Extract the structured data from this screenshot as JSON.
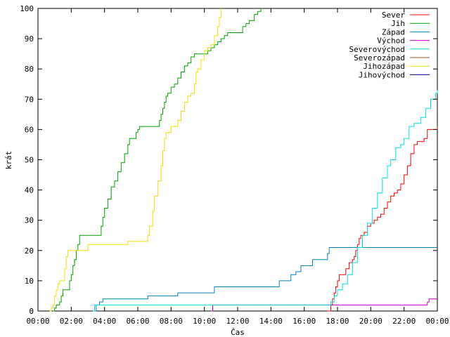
{
  "chart_data": {
    "type": "line",
    "xlabel": "Čas",
    "ylabel": "krát",
    "xlim": [
      0,
      24
    ],
    "ylim": [
      0,
      100
    ],
    "xticks": [
      {
        "v": 0,
        "label": "00:00"
      },
      {
        "v": 2,
        "label": "02:00"
      },
      {
        "v": 4,
        "label": "04:00"
      },
      {
        "v": 6,
        "label": "06:00"
      },
      {
        "v": 8,
        "label": "08:00"
      },
      {
        "v": 10,
        "label": "10:00"
      },
      {
        "v": 12,
        "label": "12:00"
      },
      {
        "v": 14,
        "label": "14:00"
      },
      {
        "v": 16,
        "label": "16:00"
      },
      {
        "v": 18,
        "label": "18:00"
      },
      {
        "v": 20,
        "label": "20:00"
      },
      {
        "v": 22,
        "label": "22:00"
      },
      {
        "v": 24,
        "label": "00:00"
      }
    ],
    "yticks": [
      {
        "v": 0,
        "label": "0"
      },
      {
        "v": 10,
        "label": "10"
      },
      {
        "v": 20,
        "label": "20"
      },
      {
        "v": 30,
        "label": "30"
      },
      {
        "v": 40,
        "label": "40"
      },
      {
        "v": 50,
        "label": "50"
      },
      {
        "v": 60,
        "label": "60"
      },
      {
        "v": 70,
        "label": "70"
      },
      {
        "v": 80,
        "label": "80"
      },
      {
        "v": 90,
        "label": "90"
      },
      {
        "v": 100,
        "label": "100"
      }
    ],
    "grid": false,
    "legend_position": "top-right",
    "series": [
      {
        "name": "Sever",
        "color": "#ff0000",
        "points": [
          [
            17.4,
            0
          ],
          [
            17.6,
            2
          ],
          [
            17.7,
            4
          ],
          [
            17.8,
            6
          ],
          [
            17.9,
            8
          ],
          [
            18.0,
            10
          ],
          [
            18.1,
            12
          ],
          [
            18.4,
            12
          ],
          [
            18.5,
            14
          ],
          [
            18.7,
            16
          ],
          [
            18.9,
            17
          ],
          [
            19.0,
            18
          ],
          [
            19.1,
            20
          ],
          [
            19.2,
            22
          ],
          [
            19.3,
            24
          ],
          [
            19.4,
            25
          ],
          [
            19.6,
            26
          ],
          [
            19.8,
            28
          ],
          [
            20.0,
            29
          ],
          [
            20.2,
            30
          ],
          [
            20.4,
            31
          ],
          [
            20.6,
            32
          ],
          [
            20.8,
            34
          ],
          [
            21.0,
            36
          ],
          [
            21.2,
            38
          ],
          [
            21.4,
            39
          ],
          [
            21.6,
            40
          ],
          [
            21.8,
            42
          ],
          [
            22.0,
            45
          ],
          [
            22.2,
            48
          ],
          [
            22.4,
            52
          ],
          [
            22.6,
            55
          ],
          [
            22.8,
            56
          ],
          [
            23.0,
            56
          ],
          [
            23.2,
            57
          ],
          [
            23.4,
            60
          ],
          [
            23.6,
            60
          ],
          [
            23.8,
            60
          ],
          [
            24.0,
            61
          ]
        ]
      },
      {
        "name": "Jih",
        "color": "#00a000",
        "points": [
          [
            0.9,
            0
          ],
          [
            1.0,
            1
          ],
          [
            1.1,
            2
          ],
          [
            1.2,
            2
          ],
          [
            1.3,
            3
          ],
          [
            1.4,
            5
          ],
          [
            1.5,
            7
          ],
          [
            1.8,
            7
          ],
          [
            1.9,
            10
          ],
          [
            2.0,
            12
          ],
          [
            2.1,
            15
          ],
          [
            2.2,
            17
          ],
          [
            2.3,
            20
          ],
          [
            2.4,
            22
          ],
          [
            2.5,
            25
          ],
          [
            3.7,
            25
          ],
          [
            3.8,
            28
          ],
          [
            3.9,
            31
          ],
          [
            4.0,
            34
          ],
          [
            4.2,
            37
          ],
          [
            4.4,
            41
          ],
          [
            4.6,
            43
          ],
          [
            4.8,
            46
          ],
          [
            5.0,
            49
          ],
          [
            5.2,
            52
          ],
          [
            5.4,
            55
          ],
          [
            5.5,
            57
          ],
          [
            5.8,
            57
          ],
          [
            5.9,
            59
          ],
          [
            6.0,
            60
          ],
          [
            6.1,
            61
          ],
          [
            7.2,
            61
          ],
          [
            7.3,
            63
          ],
          [
            7.4,
            65
          ],
          [
            7.5,
            67
          ],
          [
            7.6,
            69
          ],
          [
            7.7,
            71
          ],
          [
            7.8,
            72
          ],
          [
            8.0,
            74
          ],
          [
            8.2,
            75
          ],
          [
            8.4,
            77
          ],
          [
            8.6,
            79
          ],
          [
            8.8,
            81
          ],
          [
            9.0,
            82
          ],
          [
            9.2,
            84
          ],
          [
            9.4,
            85
          ],
          [
            10.0,
            85
          ],
          [
            10.2,
            86
          ],
          [
            10.4,
            87
          ],
          [
            10.6,
            88
          ],
          [
            10.8,
            89
          ],
          [
            11.0,
            90
          ],
          [
            11.2,
            91
          ],
          [
            11.4,
            92
          ],
          [
            12.1,
            92
          ],
          [
            12.3,
            94
          ],
          [
            12.5,
            95
          ],
          [
            12.7,
            96
          ],
          [
            13.0,
            98
          ],
          [
            13.2,
            99
          ],
          [
            13.4,
            100
          ]
        ]
      },
      {
        "name": "Západ",
        "color": "#0080c0",
        "points": [
          [
            3.4,
            0
          ],
          [
            3.5,
            2
          ],
          [
            3.7,
            3
          ],
          [
            3.9,
            4
          ],
          [
            5.0,
            4
          ],
          [
            6.5,
            4
          ],
          [
            6.6,
            5
          ],
          [
            8.3,
            5
          ],
          [
            8.4,
            6
          ],
          [
            10.5,
            6
          ],
          [
            10.6,
            8
          ],
          [
            13.5,
            8
          ],
          [
            14.4,
            8
          ],
          [
            14.5,
            10
          ],
          [
            15.0,
            10
          ],
          [
            15.2,
            12
          ],
          [
            15.5,
            13
          ],
          [
            15.8,
            15
          ],
          [
            16.3,
            15
          ],
          [
            16.5,
            17
          ],
          [
            17.3,
            17
          ],
          [
            17.4,
            19
          ],
          [
            17.5,
            21
          ],
          [
            24.0,
            21
          ]
        ]
      },
      {
        "name": "Východ",
        "color": "#c000c0",
        "points": [
          [
            10.4,
            0
          ],
          [
            10.5,
            2
          ],
          [
            23.3,
            2
          ],
          [
            23.4,
            3
          ],
          [
            23.5,
            4
          ],
          [
            24.0,
            4
          ]
        ]
      },
      {
        "name": "Severovýchod",
        "color": "#00e0e0",
        "points": [
          [
            3.3,
            0
          ],
          [
            3.4,
            2
          ],
          [
            17.4,
            2
          ],
          [
            17.6,
            3
          ],
          [
            17.8,
            5
          ],
          [
            18.0,
            7
          ],
          [
            18.3,
            9
          ],
          [
            18.6,
            12
          ],
          [
            18.9,
            16
          ],
          [
            19.2,
            21
          ],
          [
            19.5,
            25
          ],
          [
            19.8,
            29
          ],
          [
            20.1,
            34
          ],
          [
            20.4,
            39
          ],
          [
            20.7,
            44
          ],
          [
            21.0,
            48
          ],
          [
            21.2,
            50
          ],
          [
            21.5,
            54
          ],
          [
            21.8,
            55
          ],
          [
            22.0,
            57
          ],
          [
            22.3,
            61
          ],
          [
            22.6,
            62
          ],
          [
            23.0,
            64
          ],
          [
            23.3,
            67
          ],
          [
            23.6,
            70
          ],
          [
            23.9,
            72
          ],
          [
            24.0,
            73
          ]
        ]
      },
      {
        "name": "Severozápad",
        "color": "#a0522d",
        "points": []
      },
      {
        "name": "Jihozápad",
        "color": "#f0e000",
        "points": [
          [
            0.7,
            0
          ],
          [
            0.8,
            1
          ],
          [
            0.9,
            2
          ],
          [
            1.0,
            5
          ],
          [
            1.1,
            7
          ],
          [
            1.2,
            9
          ],
          [
            1.3,
            10
          ],
          [
            1.5,
            10
          ],
          [
            1.6,
            14
          ],
          [
            1.7,
            18
          ],
          [
            1.8,
            20
          ],
          [
            2.9,
            20
          ],
          [
            3.0,
            22
          ],
          [
            5.3,
            22
          ],
          [
            5.4,
            23
          ],
          [
            6.5,
            23
          ],
          [
            6.6,
            25
          ],
          [
            6.7,
            28
          ],
          [
            6.9,
            33
          ],
          [
            7.0,
            38
          ],
          [
            7.2,
            43
          ],
          [
            7.4,
            48
          ],
          [
            7.5,
            53
          ],
          [
            7.6,
            57
          ],
          [
            7.7,
            59
          ],
          [
            8.0,
            61
          ],
          [
            8.2,
            61
          ],
          [
            8.4,
            63
          ],
          [
            8.6,
            66
          ],
          [
            8.8,
            69
          ],
          [
            9.0,
            71
          ],
          [
            9.2,
            72
          ],
          [
            9.4,
            75
          ],
          [
            9.5,
            79
          ],
          [
            9.6,
            80
          ],
          [
            9.8,
            83
          ],
          [
            10.0,
            86
          ],
          [
            10.2,
            87
          ],
          [
            10.4,
            88
          ],
          [
            10.6,
            91
          ],
          [
            10.8,
            94
          ],
          [
            10.9,
            97
          ],
          [
            11.0,
            100
          ]
        ]
      },
      {
        "name": "Jihovýchod",
        "color": "#000080",
        "points": []
      }
    ]
  }
}
